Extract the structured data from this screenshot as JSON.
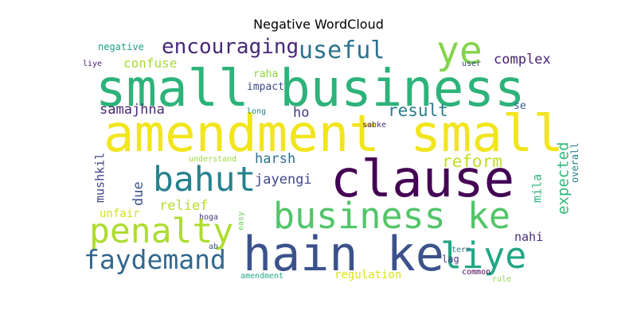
{
  "chart_data": {
    "type": "wordcloud",
    "title": "Negative WordCloud",
    "colormap": "viridis",
    "words": [
      {
        "text": "small business",
        "weight": 1.0,
        "color": "#2db37a"
      },
      {
        "text": "amendment small",
        "weight": 0.96,
        "color": "#f1e51d"
      },
      {
        "text": "clause",
        "weight": 0.9,
        "color": "#440154"
      },
      {
        "text": "hain ke",
        "weight": 0.85,
        "color": "#3b528b"
      },
      {
        "text": "business ke",
        "weight": 0.72,
        "color": "#52c569"
      },
      {
        "text": "liye",
        "weight": 0.7,
        "color": "#21a685"
      },
      {
        "text": "bahut",
        "weight": 0.65,
        "color": "#26828e"
      },
      {
        "text": "penalty",
        "weight": 0.62,
        "color": "#addc30"
      },
      {
        "text": "faydemand",
        "weight": 0.52,
        "color": "#31688e"
      },
      {
        "text": "ye",
        "weight": 0.5,
        "color": "#84d44b"
      },
      {
        "text": "useful",
        "weight": 0.42,
        "color": "#2c728e"
      },
      {
        "text": "encouraging",
        "weight": 0.35,
        "color": "#482878"
      },
      {
        "text": "result",
        "weight": 0.27,
        "color": "#287c8e"
      },
      {
        "text": "reform",
        "weight": 0.27,
        "color": "#c2df23"
      },
      {
        "text": "expected",
        "weight": 0.23,
        "color": "#35b779"
      },
      {
        "text": "complex",
        "weight": 0.2,
        "color": "#481f70"
      },
      {
        "text": "relief",
        "weight": 0.2,
        "color": "#b5de2b"
      },
      {
        "text": "harsh",
        "weight": 0.19,
        "color": "#2d708e"
      },
      {
        "text": "jayengi",
        "weight": 0.19,
        "color": "#3e4989"
      },
      {
        "text": "samajhna",
        "weight": 0.19,
        "color": "#482677"
      },
      {
        "text": "ho",
        "weight": 0.18,
        "color": "#453781"
      },
      {
        "text": "due",
        "weight": 0.18,
        "color": "#3b528b"
      },
      {
        "text": "mushkil",
        "weight": 0.16,
        "color": "#414487"
      },
      {
        "text": "mila",
        "weight": 0.16,
        "color": "#2fb47c"
      },
      {
        "text": "confuse",
        "weight": 0.16,
        "color": "#a8db34"
      },
      {
        "text": "nahi",
        "weight": 0.16,
        "color": "#472d7b"
      },
      {
        "text": "unfair",
        "weight": 0.14,
        "color": "#d2e21b"
      },
      {
        "text": "regulation",
        "weight": 0.14,
        "color": "#dde318"
      },
      {
        "text": "negative",
        "weight": 0.12,
        "color": "#1f9e89"
      },
      {
        "text": "lag",
        "weight": 0.12,
        "color": "#46327e"
      },
      {
        "text": "overall",
        "weight": 0.12,
        "color": "#277f8e"
      },
      {
        "text": "impact",
        "weight": 0.11,
        "color": "#3f4788"
      },
      {
        "text": "raha",
        "weight": 0.11,
        "color": "#8bd646"
      },
      {
        "text": "se",
        "weight": 0.1,
        "color": "#355f8d"
      },
      {
        "text": "common",
        "weight": 0.09,
        "color": "#440154"
      },
      {
        "text": "liye",
        "weight": 0.09,
        "color": "#48186a"
      },
      {
        "text": "user",
        "weight": 0.08,
        "color": "#3e4a89"
      },
      {
        "text": "long",
        "weight": 0.08,
        "color": "#25848e"
      },
      {
        "text": "sabke",
        "weight": 0.08,
        "color": "#472c7a"
      },
      {
        "text": "understand",
        "weight": 0.08,
        "color": "#9bd93c"
      },
      {
        "text": "easy",
        "weight": 0.08,
        "color": "#6ccd5a"
      },
      {
        "text": "hoga",
        "weight": 0.08,
        "color": "#453882"
      },
      {
        "text": "ab",
        "weight": 0.08,
        "color": "#3b528b"
      },
      {
        "text": "amendment",
        "weight": 0.08,
        "color": "#22a884"
      },
      {
        "text": "term",
        "weight": 0.08,
        "color": "#2a788e"
      },
      {
        "text": "rule",
        "weight": 0.08,
        "color": "#8fd744"
      }
    ]
  }
}
